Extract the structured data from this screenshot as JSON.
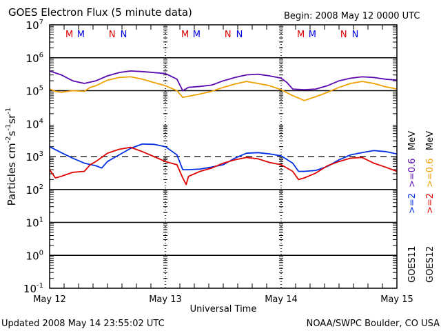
{
  "chart_data": {
    "type": "line",
    "title": "GOES Electron Flux (5 minute data)",
    "begin_label": "Begin: 2008 May 12 0000 UTC",
    "xlabel": "Universal Time",
    "ylabel": "Particles cm",
    "ylabel_parts": {
      "base": "Particles cm",
      "e1": "-2",
      "s": "s",
      "e2": "-1",
      "sr": "sr",
      "e3": "-1"
    },
    "x_unit": "days since 2008 May 12 00:00 UTC",
    "xlim": [
      0,
      3
    ],
    "x_ticks": [
      {
        "value": 0,
        "label": "May 12"
      },
      {
        "value": 1,
        "label": "May 13"
      },
      {
        "value": 2,
        "label": "May 14"
      },
      {
        "value": 3,
        "label": "May 15"
      }
    ],
    "yscale": "log",
    "ylim_exp": [
      -1,
      7
    ],
    "y_ticks": [
      {
        "exp": 7,
        "base": "10",
        "sup": "7"
      },
      {
        "exp": 6,
        "base": "10",
        "sup": "6"
      },
      {
        "exp": 5,
        "base": "10",
        "sup": "5"
      },
      {
        "exp": 4,
        "base": "10",
        "sup": "4"
      },
      {
        "exp": 3,
        "base": "10",
        "sup": "3"
      },
      {
        "exp": 2,
        "base": "10",
        "sup": "2"
      },
      {
        "exp": 1,
        "base": "10",
        "sup": "1"
      },
      {
        "exp": 0,
        "base": "10",
        "sup": "0"
      },
      {
        "exp": -1,
        "base": "10",
        "sup": "-1"
      }
    ],
    "gridlines_exp": [
      6,
      5,
      2,
      1,
      0
    ],
    "threshold_exp": 3,
    "markers": [
      {
        "x": 0.17,
        "label": "M",
        "color": "#e00000"
      },
      {
        "x": 0.27,
        "label": "M",
        "color": "#0000e0"
      },
      {
        "x": 0.54,
        "label": "N",
        "color": "#e00000"
      },
      {
        "x": 0.64,
        "label": "N",
        "color": "#0000e0"
      },
      {
        "x": 1.17,
        "label": "M",
        "color": "#e00000"
      },
      {
        "x": 1.27,
        "label": "M",
        "color": "#0000e0"
      },
      {
        "x": 1.54,
        "label": "N",
        "color": "#e00000"
      },
      {
        "x": 1.64,
        "label": "N",
        "color": "#0000e0"
      },
      {
        "x": 2.17,
        "label": "M",
        "color": "#e00000"
      },
      {
        "x": 2.27,
        "label": "M",
        "color": "#0000e0"
      },
      {
        "x": 2.54,
        "label": "N",
        "color": "#e00000"
      },
      {
        "x": 2.64,
        "label": "N",
        "color": "#0000e0"
      }
    ],
    "legend_placement": "right (vertical)",
    "legend": [
      {
        "satellite": "GOES11",
        "gt2": ">=2",
        "gt06": ">=0.6",
        "unit": "MeV",
        "color_gt2": "#0000e0",
        "color_gt06": "#6000a0"
      },
      {
        "satellite": "GOES12",
        "gt2": ">=2",
        "gt06": ">=0.6",
        "unit": "MeV",
        "color_gt2": "#e00000",
        "color_gt06": "#f0a000"
      }
    ],
    "series": [
      {
        "name": "GOES11 >=0.6 MeV",
        "color": "#5a0ab0",
        "x": [
          0,
          0.1,
          0.2,
          0.3,
          0.4,
          0.5,
          0.6,
          0.7,
          0.8,
          0.9,
          1.0,
          1.1,
          1.15,
          1.2,
          1.3,
          1.4,
          1.5,
          1.6,
          1.7,
          1.8,
          1.9,
          2.0,
          2.05,
          2.1,
          2.2,
          2.3,
          2.4,
          2.5,
          2.6,
          2.7,
          2.8,
          2.9,
          3.0
        ],
        "log10y": [
          5.6,
          5.48,
          5.3,
          5.22,
          5.3,
          5.45,
          5.55,
          5.6,
          5.58,
          5.55,
          5.52,
          5.35,
          5.0,
          5.1,
          5.13,
          5.17,
          5.3,
          5.4,
          5.48,
          5.5,
          5.45,
          5.38,
          5.25,
          5.05,
          5.03,
          5.05,
          5.15,
          5.3,
          5.38,
          5.42,
          5.4,
          5.35,
          5.32
        ]
      },
      {
        "name": "GOES12 >=0.6 MeV",
        "color": "#f0a000",
        "x": [
          0,
          0.05,
          0.1,
          0.2,
          0.3,
          0.35,
          0.4,
          0.5,
          0.6,
          0.7,
          0.8,
          0.9,
          1.0,
          1.1,
          1.15,
          1.2,
          1.3,
          1.4,
          1.5,
          1.6,
          1.7,
          1.8,
          1.9,
          2.0,
          2.1,
          2.2,
          2.3,
          2.4,
          2.5,
          2.6,
          2.7,
          2.8,
          2.9,
          3.0
        ],
        "log10y": [
          5.05,
          4.98,
          4.95,
          5.0,
          4.98,
          5.1,
          5.15,
          5.32,
          5.4,
          5.42,
          5.35,
          5.25,
          5.15,
          5.0,
          4.8,
          4.83,
          4.9,
          4.98,
          5.1,
          5.2,
          5.28,
          5.22,
          5.15,
          5.03,
          4.85,
          4.7,
          4.82,
          4.95,
          5.1,
          5.22,
          5.28,
          5.22,
          5.12,
          5.05
        ]
      },
      {
        "name": "GOES11 >=2 MeV",
        "color": "#0030e0",
        "x": [
          0,
          0.1,
          0.2,
          0.3,
          0.4,
          0.45,
          0.5,
          0.6,
          0.7,
          0.8,
          0.9,
          1.0,
          1.1,
          1.15,
          1.2,
          1.3,
          1.4,
          1.5,
          1.6,
          1.7,
          1.8,
          1.9,
          2.0,
          2.1,
          2.15,
          2.2,
          2.3,
          2.4,
          2.5,
          2.6,
          2.7,
          2.8,
          2.9,
          3.0
        ],
        "log10y": [
          3.3,
          3.12,
          2.95,
          2.8,
          2.72,
          2.65,
          2.85,
          3.05,
          3.25,
          3.38,
          3.37,
          3.3,
          3.05,
          2.6,
          2.6,
          2.62,
          2.68,
          2.75,
          2.95,
          3.1,
          3.12,
          3.08,
          3.02,
          2.8,
          2.55,
          2.55,
          2.58,
          2.7,
          2.9,
          3.05,
          3.12,
          3.18,
          3.15,
          3.08
        ]
      },
      {
        "name": "GOES12 >=2 MeV",
        "color": "#e00000",
        "x": [
          0,
          0.05,
          0.1,
          0.2,
          0.3,
          0.35,
          0.4,
          0.5,
          0.6,
          0.7,
          0.8,
          0.9,
          1.0,
          1.1,
          1.15,
          1.18,
          1.2,
          1.3,
          1.4,
          1.5,
          1.6,
          1.7,
          1.8,
          1.9,
          2.0,
          2.1,
          2.15,
          2.2,
          2.3,
          2.4,
          2.5,
          2.6,
          2.7,
          2.8,
          2.9,
          3.0
        ],
        "log10y": [
          2.6,
          2.35,
          2.4,
          2.52,
          2.55,
          2.75,
          2.85,
          3.1,
          3.22,
          3.28,
          3.15,
          3.0,
          2.85,
          2.75,
          2.35,
          2.15,
          2.4,
          2.55,
          2.65,
          2.8,
          2.9,
          2.97,
          2.93,
          2.82,
          2.75,
          2.55,
          2.3,
          2.35,
          2.5,
          2.72,
          2.85,
          2.95,
          2.97,
          2.8,
          2.68,
          2.55
        ]
      }
    ]
  },
  "footer": {
    "updated": "Updated 2008 May 14 23:55:02 UTC",
    "credit": "NOAA/SWPC Boulder, CO USA"
  }
}
